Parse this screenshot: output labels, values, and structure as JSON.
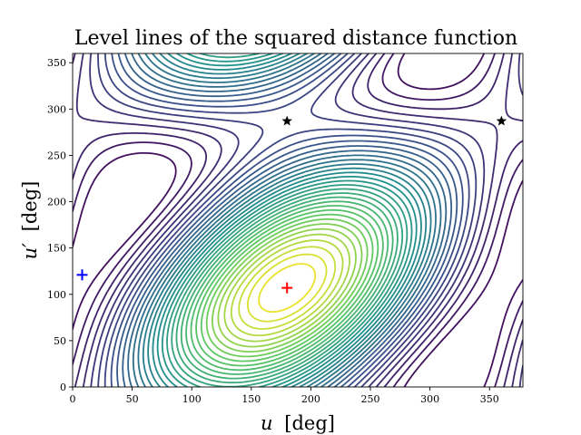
{
  "chart_data": {
    "type": "contour",
    "title": "Level lines of the squared distance function",
    "xlabel_var": "u",
    "xlabel_unit": "[deg]",
    "ylabel_var": "u′",
    "ylabel_unit": "[deg]",
    "xlim": [
      0,
      378
    ],
    "ylim": [
      0,
      360
    ],
    "x_ticks": [
      0,
      50,
      100,
      150,
      200,
      250,
      300,
      350
    ],
    "y_ticks": [
      0,
      50,
      100,
      150,
      200,
      250,
      300,
      350
    ],
    "colormap": [
      "#440154",
      "#3b528b",
      "#21918c",
      "#5ec962",
      "#fde725"
    ],
    "field": {
      "model": "periodic squared distance",
      "period_x": 360,
      "period_y": 360,
      "a": 0.76,
      "b": 0.52,
      "c": 0.66,
      "angle_offset_deg": 0
    },
    "levels": {
      "count": 34,
      "min_fraction": 0.05,
      "max_fraction": 0.97
    },
    "markers": [
      {
        "name": "minimum",
        "shape": "plus",
        "x": 180,
        "y": 107,
        "color": "#ff0000"
      },
      {
        "name": "minimum-periodic",
        "shape": "plus",
        "x": 8,
        "y": 121,
        "color": "#0000ff"
      },
      {
        "name": "saddle-1",
        "shape": "star",
        "x": 180,
        "y": 287,
        "color": "#000000"
      },
      {
        "name": "saddle-2",
        "shape": "star",
        "x": 360,
        "y": 287,
        "color": "#000000"
      }
    ]
  }
}
